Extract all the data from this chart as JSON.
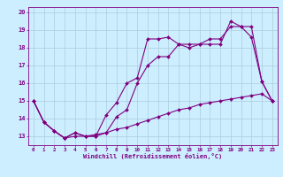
{
  "xlabel": "Windchill (Refroidissement éolien,°C)",
  "background_color": "#cceeff",
  "line_color": "#800080",
  "grid_color": "#aaddee",
  "xlim": [
    -0.5,
    23.5
  ],
  "ylim": [
    12.5,
    20.3
  ],
  "xticks": [
    0,
    1,
    2,
    3,
    4,
    5,
    6,
    7,
    8,
    9,
    10,
    11,
    12,
    13,
    14,
    15,
    16,
    17,
    18,
    19,
    20,
    21,
    22,
    23
  ],
  "yticks": [
    13,
    14,
    15,
    16,
    17,
    18,
    19,
    20
  ],
  "line1_x": [
    0,
    1,
    2,
    3,
    4,
    5,
    6,
    7,
    8,
    9,
    10,
    11,
    12,
    13,
    14,
    15,
    16,
    17,
    18,
    19,
    20,
    21,
    22,
    23
  ],
  "line1_y": [
    15.0,
    13.8,
    13.3,
    12.9,
    13.2,
    13.0,
    13.0,
    14.2,
    14.9,
    16.0,
    16.3,
    18.5,
    18.5,
    18.6,
    18.2,
    18.0,
    18.2,
    18.2,
    18.2,
    19.5,
    19.2,
    18.6,
    16.1,
    15.0
  ],
  "line2_x": [
    0,
    1,
    2,
    3,
    4,
    5,
    6,
    7,
    8,
    9,
    10,
    11,
    12,
    13,
    14,
    15,
    16,
    17,
    18,
    19,
    20,
    21,
    22,
    23
  ],
  "line2_y": [
    15.0,
    13.8,
    13.3,
    12.9,
    13.2,
    13.0,
    13.0,
    13.2,
    14.1,
    14.5,
    16.0,
    17.0,
    17.5,
    17.5,
    18.2,
    18.2,
    18.2,
    18.5,
    18.5,
    19.2,
    19.2,
    19.2,
    16.1,
    15.0
  ],
  "line3_x": [
    0,
    1,
    2,
    3,
    4,
    5,
    6,
    7,
    8,
    9,
    10,
    11,
    12,
    13,
    14,
    15,
    16,
    17,
    18,
    19,
    20,
    21,
    22,
    23
  ],
  "line3_y": [
    15.0,
    13.8,
    13.3,
    12.9,
    13.0,
    13.0,
    13.1,
    13.2,
    13.4,
    13.5,
    13.7,
    13.9,
    14.1,
    14.3,
    14.5,
    14.6,
    14.8,
    14.9,
    15.0,
    15.1,
    15.2,
    15.3,
    15.4,
    15.0
  ]
}
